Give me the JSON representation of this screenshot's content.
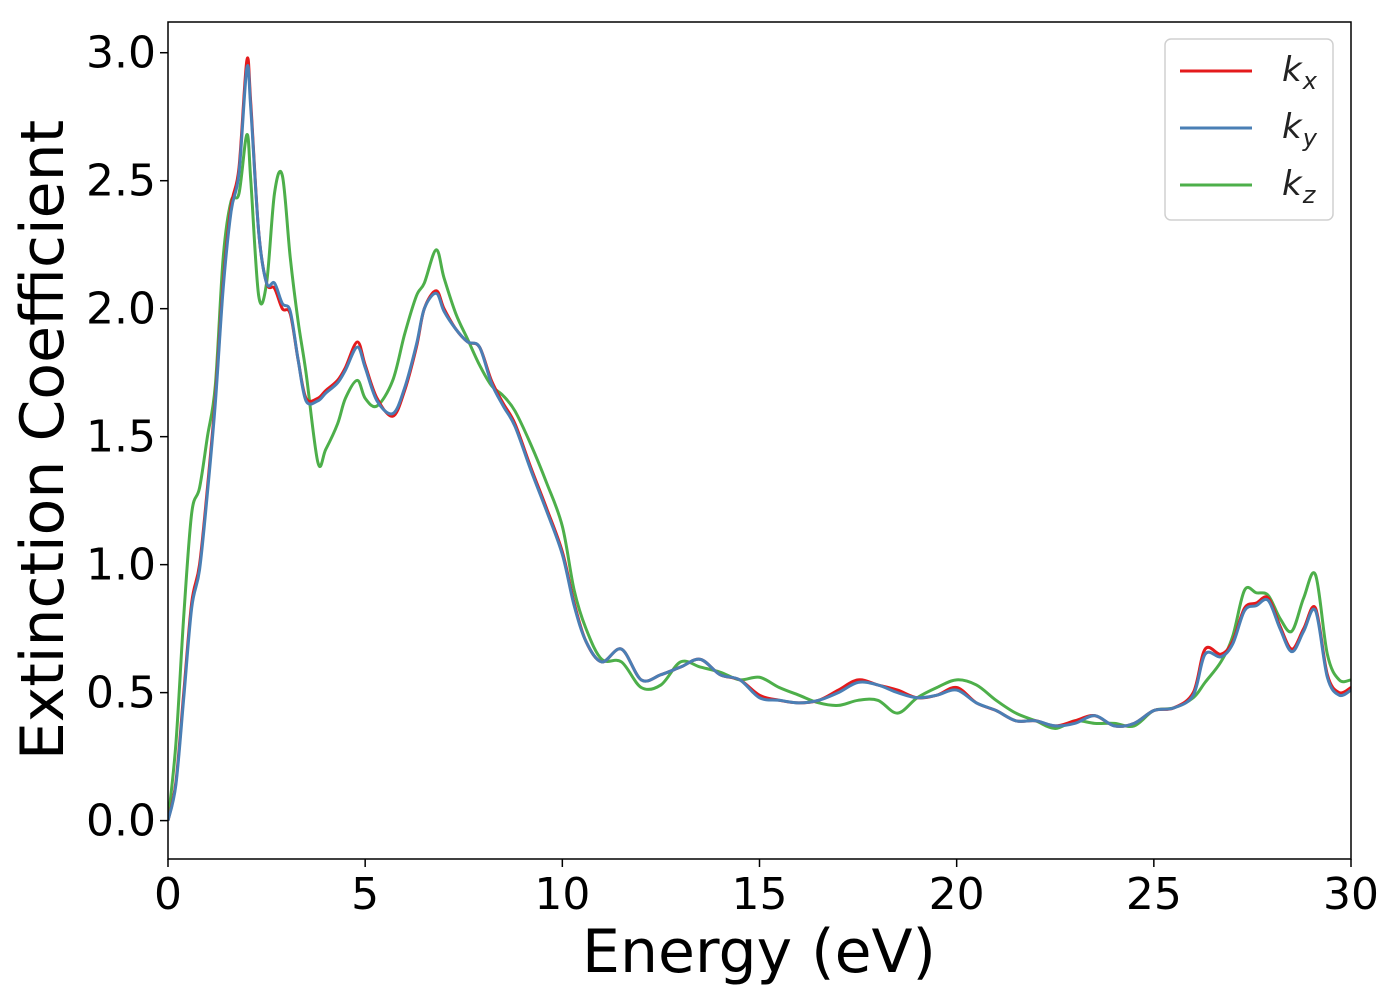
{
  "chart_data": {
    "type": "line",
    "title": "",
    "xlabel": "Energy (eV)",
    "ylabel": "Extinction Coefficient",
    "xlim": [
      0,
      30
    ],
    "ylim": [
      -0.15,
      3.12
    ],
    "xticks": [
      0,
      5,
      10,
      15,
      20,
      25,
      30
    ],
    "yticks": [
      0.0,
      0.5,
      1.0,
      1.5,
      2.0,
      2.5,
      3.0
    ],
    "xtick_labels": [
      "0",
      "5",
      "10",
      "15",
      "20",
      "25",
      "30"
    ],
    "ytick_labels": [
      "0.0",
      "0.5",
      "1.0",
      "1.5",
      "2.0",
      "2.5",
      "3.0"
    ],
    "grid": false,
    "legend": "top-right",
    "series": [
      {
        "name": "k_x",
        "label_main": "k",
        "label_sub": "x",
        "color": "#e41a1c",
        "x": [
          0,
          0.2,
          0.4,
          0.6,
          0.8,
          1.0,
          1.2,
          1.4,
          1.6,
          1.8,
          2.0,
          2.1,
          2.3,
          2.5,
          2.7,
          2.9,
          3.1,
          3.3,
          3.5,
          3.8,
          4.0,
          4.3,
          4.5,
          4.8,
          5.0,
          5.3,
          5.7,
          6.0,
          6.3,
          6.5,
          6.8,
          7.0,
          7.3,
          7.6,
          7.9,
          8.2,
          8.5,
          8.8,
          9.2,
          9.6,
          10.0,
          10.3,
          10.6,
          11.0,
          11.5,
          12.0,
          12.5,
          13.0,
          13.5,
          14.0,
          14.5,
          15.0,
          15.5,
          16.0,
          16.5,
          17.0,
          17.5,
          18.0,
          18.5,
          19.0,
          19.5,
          20.0,
          20.5,
          21.0,
          21.5,
          22.0,
          22.5,
          23.0,
          23.5,
          24.0,
          24.5,
          25.0,
          25.5,
          26.0,
          26.3,
          26.7,
          27.0,
          27.3,
          27.6,
          27.9,
          28.2,
          28.5,
          28.8,
          29.1,
          29.4,
          29.7,
          30.0
        ],
        "y": [
          0.0,
          0.15,
          0.5,
          0.85,
          1.0,
          1.3,
          1.65,
          2.1,
          2.4,
          2.55,
          2.97,
          2.8,
          2.3,
          2.1,
          2.08,
          2.0,
          1.98,
          1.8,
          1.65,
          1.65,
          1.68,
          1.72,
          1.77,
          1.87,
          1.78,
          1.65,
          1.58,
          1.68,
          1.85,
          2.0,
          2.07,
          2.0,
          1.92,
          1.87,
          1.85,
          1.72,
          1.63,
          1.55,
          1.38,
          1.22,
          1.05,
          0.85,
          0.7,
          0.62,
          0.67,
          0.55,
          0.57,
          0.6,
          0.63,
          0.57,
          0.55,
          0.49,
          0.47,
          0.46,
          0.47,
          0.51,
          0.55,
          0.53,
          0.51,
          0.48,
          0.49,
          0.52,
          0.46,
          0.43,
          0.39,
          0.39,
          0.37,
          0.39,
          0.41,
          0.37,
          0.38,
          0.43,
          0.44,
          0.5,
          0.67,
          0.65,
          0.7,
          0.83,
          0.85,
          0.87,
          0.76,
          0.67,
          0.75,
          0.83,
          0.57,
          0.5,
          0.52
        ]
      },
      {
        "name": "k_y",
        "label_main": "k",
        "label_sub": "y",
        "color": "#4a7fb5",
        "x": [
          0,
          0.2,
          0.4,
          0.6,
          0.8,
          1.0,
          1.2,
          1.4,
          1.6,
          1.8,
          2.0,
          2.1,
          2.3,
          2.5,
          2.7,
          2.9,
          3.1,
          3.3,
          3.5,
          3.8,
          4.0,
          4.3,
          4.5,
          4.8,
          5.0,
          5.3,
          5.7,
          6.0,
          6.3,
          6.5,
          6.8,
          7.0,
          7.3,
          7.6,
          7.9,
          8.2,
          8.5,
          8.8,
          9.2,
          9.6,
          10.0,
          10.3,
          10.6,
          11.0,
          11.5,
          12.0,
          12.5,
          13.0,
          13.5,
          14.0,
          14.5,
          15.0,
          15.5,
          16.0,
          16.5,
          17.0,
          17.5,
          18.0,
          18.5,
          19.0,
          19.5,
          20.0,
          20.5,
          21.0,
          21.5,
          22.0,
          22.5,
          23.0,
          23.5,
          24.0,
          24.5,
          25.0,
          25.5,
          26.0,
          26.3,
          26.7,
          27.0,
          27.3,
          27.6,
          27.9,
          28.2,
          28.5,
          28.8,
          29.1,
          29.4,
          29.7,
          30.0
        ],
        "y": [
          0.0,
          0.14,
          0.48,
          0.83,
          0.98,
          1.28,
          1.63,
          2.08,
          2.38,
          2.53,
          2.94,
          2.78,
          2.3,
          2.1,
          2.1,
          2.02,
          1.99,
          1.8,
          1.64,
          1.64,
          1.67,
          1.71,
          1.76,
          1.85,
          1.77,
          1.64,
          1.59,
          1.69,
          1.86,
          2.0,
          2.06,
          1.99,
          1.92,
          1.87,
          1.85,
          1.71,
          1.62,
          1.54,
          1.37,
          1.21,
          1.04,
          0.84,
          0.7,
          0.62,
          0.67,
          0.55,
          0.57,
          0.6,
          0.63,
          0.57,
          0.55,
          0.48,
          0.47,
          0.46,
          0.47,
          0.5,
          0.54,
          0.53,
          0.5,
          0.48,
          0.49,
          0.51,
          0.46,
          0.43,
          0.39,
          0.39,
          0.37,
          0.38,
          0.41,
          0.37,
          0.38,
          0.43,
          0.44,
          0.49,
          0.65,
          0.64,
          0.69,
          0.82,
          0.84,
          0.86,
          0.75,
          0.66,
          0.74,
          0.82,
          0.56,
          0.49,
          0.51
        ]
      },
      {
        "name": "k_z",
        "label_main": "k",
        "label_sub": "z",
        "color": "#4daf4a",
        "x": [
          0,
          0.2,
          0.4,
          0.6,
          0.8,
          1.0,
          1.2,
          1.4,
          1.6,
          1.8,
          2.0,
          2.1,
          2.3,
          2.5,
          2.7,
          2.9,
          3.1,
          3.3,
          3.5,
          3.8,
          4.0,
          4.3,
          4.5,
          4.8,
          5.0,
          5.3,
          5.7,
          6.0,
          6.3,
          6.5,
          6.8,
          7.0,
          7.3,
          7.6,
          7.9,
          8.2,
          8.5,
          8.8,
          9.2,
          9.6,
          10.0,
          10.3,
          10.6,
          11.0,
          11.5,
          12.0,
          12.5,
          13.0,
          13.5,
          14.0,
          14.5,
          15.0,
          15.5,
          16.0,
          16.5,
          17.0,
          17.5,
          18.0,
          18.5,
          19.0,
          19.5,
          20.0,
          20.5,
          21.0,
          21.5,
          22.0,
          22.5,
          23.0,
          23.5,
          24.0,
          24.5,
          25.0,
          25.5,
          26.0,
          26.3,
          26.7,
          27.0,
          27.3,
          27.6,
          27.9,
          28.2,
          28.5,
          28.8,
          29.1,
          29.4,
          29.7,
          30.0
        ],
        "y": [
          0.0,
          0.3,
          0.8,
          1.2,
          1.3,
          1.5,
          1.7,
          2.2,
          2.42,
          2.45,
          2.68,
          2.5,
          2.05,
          2.1,
          2.45,
          2.52,
          2.2,
          1.95,
          1.75,
          1.4,
          1.45,
          1.55,
          1.65,
          1.72,
          1.65,
          1.62,
          1.72,
          1.9,
          2.05,
          2.1,
          2.23,
          2.12,
          1.98,
          1.88,
          1.78,
          1.7,
          1.66,
          1.6,
          1.47,
          1.32,
          1.15,
          0.9,
          0.75,
          0.63,
          0.62,
          0.52,
          0.53,
          0.62,
          0.6,
          0.58,
          0.55,
          0.56,
          0.52,
          0.49,
          0.46,
          0.45,
          0.47,
          0.47,
          0.42,
          0.48,
          0.52,
          0.55,
          0.53,
          0.47,
          0.42,
          0.39,
          0.36,
          0.39,
          0.38,
          0.38,
          0.37,
          0.43,
          0.44,
          0.48,
          0.54,
          0.62,
          0.72,
          0.9,
          0.89,
          0.88,
          0.79,
          0.74,
          0.87,
          0.96,
          0.65,
          0.55,
          0.55
        ]
      }
    ]
  }
}
